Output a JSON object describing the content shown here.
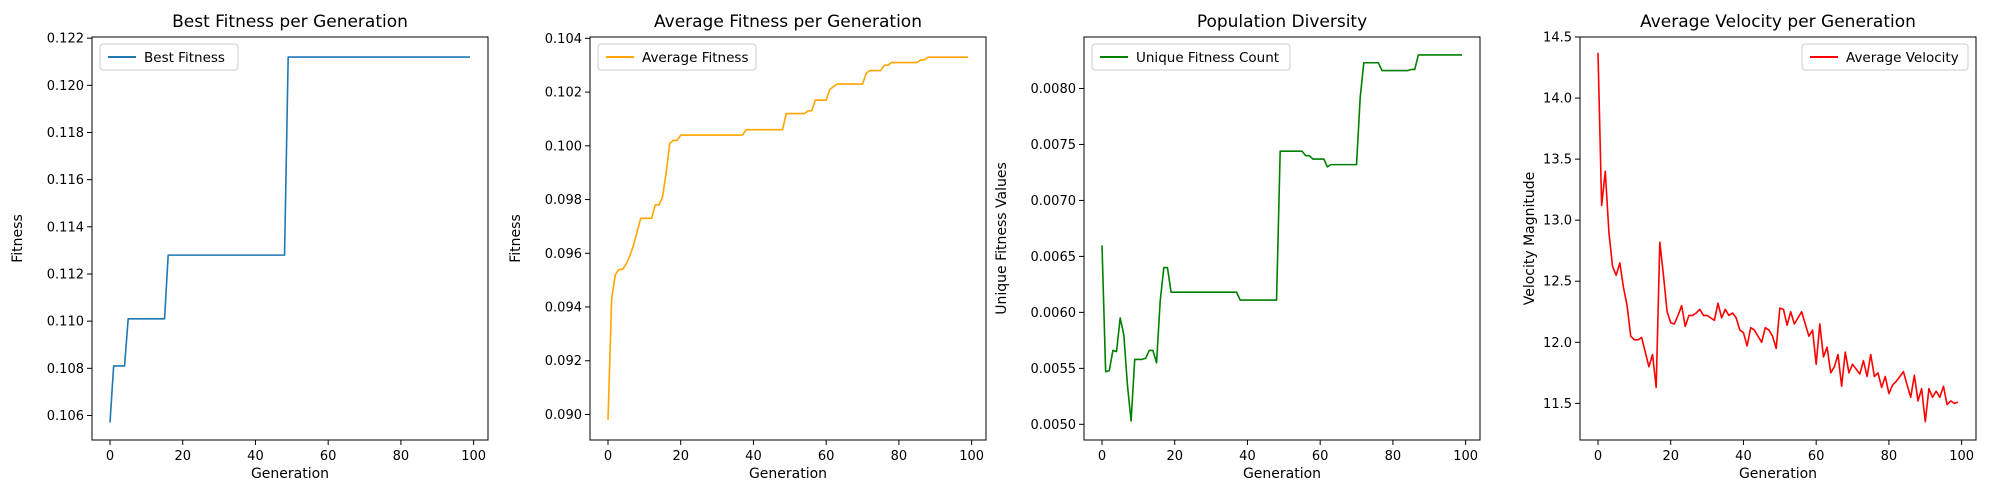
{
  "chart_data": [
    {
      "type": "line",
      "title": "Best Fitness per Generation",
      "xlabel": "Generation",
      "ylabel": "Fitness",
      "xlim": [
        -4.95,
        103.95
      ],
      "ylim": [
        0.10496,
        0.12205
      ],
      "xticks": [
        0,
        20,
        40,
        60,
        80,
        100
      ],
      "yticks": [
        0.106,
        0.108,
        0.11,
        0.112,
        0.114,
        0.116,
        0.118,
        0.12,
        0.122
      ],
      "tick_decimals": 3,
      "legend_position": "upper-left",
      "series": [
        {
          "name": "Best Fitness",
          "color": "#1f77b4",
          "points": [
            [
              0,
              0.1057
            ],
            [
              1,
              0.1081
            ],
            [
              2,
              0.1081
            ],
            [
              3,
              0.1081
            ],
            [
              4,
              0.1081
            ],
            [
              5,
              0.1101
            ],
            [
              15,
              0.1101
            ],
            [
              16,
              0.1128
            ],
            [
              48,
              0.1128
            ],
            [
              49,
              0.1212
            ],
            [
              99,
              0.1212
            ]
          ]
        }
      ]
    },
    {
      "type": "line",
      "title": "Average Fitness per Generation",
      "xlabel": "Generation",
      "ylabel": "Fitness",
      "xlim": [
        -4.95,
        103.95
      ],
      "ylim": [
        0.08905,
        0.10405
      ],
      "xticks": [
        0,
        20,
        40,
        60,
        80,
        100
      ],
      "yticks": [
        0.09,
        0.092,
        0.094,
        0.096,
        0.098,
        0.1,
        0.102,
        0.104
      ],
      "tick_decimals": 3,
      "legend_position": "upper-left",
      "series": [
        {
          "name": "Average Fitness",
          "color": "#ffa500",
          "points": [
            [
              0,
              0.0898
            ],
            [
              1,
              0.0943
            ],
            [
              2,
              0.0952
            ],
            [
              3,
              0.0954
            ],
            [
              4,
              0.0954
            ],
            [
              5,
              0.0956
            ],
            [
              6,
              0.0959
            ],
            [
              7,
              0.0963
            ],
            [
              8,
              0.0968
            ],
            [
              9,
              0.0973
            ],
            [
              10,
              0.0973
            ],
            [
              11,
              0.0973
            ],
            [
              12,
              0.0973
            ],
            [
              13,
              0.0978
            ],
            [
              14,
              0.0978
            ],
            [
              15,
              0.0981
            ],
            [
              16,
              0.099
            ],
            [
              17,
              0.1001
            ],
            [
              18,
              0.1002
            ],
            [
              19,
              0.1002
            ],
            [
              20,
              0.1004
            ],
            [
              37,
              0.1004
            ],
            [
              38,
              0.1006
            ],
            [
              48,
              0.1006
            ],
            [
              49,
              0.1012
            ],
            [
              54,
              0.1012
            ],
            [
              55,
              0.1013
            ],
            [
              56,
              0.1013
            ],
            [
              57,
              0.1017
            ],
            [
              60,
              0.1017
            ],
            [
              61,
              0.1021
            ],
            [
              62,
              0.1022
            ],
            [
              63,
              0.1023
            ],
            [
              70,
              0.1023
            ],
            [
              71,
              0.1027
            ],
            [
              72,
              0.1028
            ],
            [
              75,
              0.1028
            ],
            [
              76,
              0.103
            ],
            [
              77,
              0.103
            ],
            [
              78,
              0.1031
            ],
            [
              85,
              0.1031
            ],
            [
              86,
              0.1032
            ],
            [
              87,
              0.1032
            ],
            [
              88,
              0.1033
            ],
            [
              99,
              0.1033
            ]
          ]
        }
      ]
    },
    {
      "type": "line",
      "title": "Population Diversity",
      "xlabel": "Generation",
      "ylabel": "Unique Fitness Values",
      "xlim": [
        -4.95,
        103.95
      ],
      "ylim": [
        0.00486,
        0.00846
      ],
      "xticks": [
        0,
        20,
        40,
        60,
        80,
        100
      ],
      "yticks": [
        0.005,
        0.0055,
        0.006,
        0.0065,
        0.007,
        0.0075,
        0.008
      ],
      "tick_decimals": 4,
      "legend_position": "upper-left",
      "series": [
        {
          "name": "Unique Fitness Count",
          "color": "#008000",
          "points": [
            [
              0,
              0.0066
            ],
            [
              1,
              0.00547
            ],
            [
              2,
              0.00548
            ],
            [
              3,
              0.00566
            ],
            [
              4,
              0.00565
            ],
            [
              5,
              0.00595
            ],
            [
              6,
              0.0058
            ],
            [
              7,
              0.00535
            ],
            [
              8,
              0.00503
            ],
            [
              9,
              0.00558
            ],
            [
              10,
              0.00558
            ],
            [
              11,
              0.00558
            ],
            [
              12,
              0.00559
            ],
            [
              13,
              0.00566
            ],
            [
              14,
              0.00566
            ],
            [
              15,
              0.00555
            ],
            [
              16,
              0.0061
            ],
            [
              17,
              0.0064
            ],
            [
              18,
              0.0064
            ],
            [
              19,
              0.00618
            ],
            [
              37,
              0.00618
            ],
            [
              38,
              0.00611
            ],
            [
              48,
              0.00611
            ],
            [
              49,
              0.00744
            ],
            [
              55,
              0.00744
            ],
            [
              56,
              0.0074
            ],
            [
              57,
              0.0074
            ],
            [
              58,
              0.00737
            ],
            [
              61,
              0.00737
            ],
            [
              62,
              0.0073
            ],
            [
              63,
              0.00732
            ],
            [
              70,
              0.00732
            ],
            [
              71,
              0.00792
            ],
            [
              72,
              0.00823
            ],
            [
              76,
              0.00823
            ],
            [
              77,
              0.00816
            ],
            [
              84,
              0.00816
            ],
            [
              85,
              0.00817
            ],
            [
              86,
              0.00817
            ],
            [
              87,
              0.0083
            ],
            [
              99,
              0.0083
            ]
          ]
        }
      ]
    },
    {
      "type": "line",
      "title": "Average Velocity per Generation",
      "xlabel": "Generation",
      "ylabel": "Velocity Magnitude",
      "xlim": [
        -4.95,
        103.95
      ],
      "ylim": [
        11.2,
        14.5
      ],
      "xticks": [
        0,
        20,
        40,
        60,
        80,
        100
      ],
      "yticks": [
        11.5,
        12.0,
        12.5,
        13.0,
        13.5,
        14.0,
        14.5
      ],
      "tick_decimals": 1,
      "legend_position": "upper-right",
      "series": [
        {
          "name": "Average Velocity",
          "color": "#ff0000",
          "points": [
            [
              0,
              14.37
            ],
            [
              1,
              13.12
            ],
            [
              2,
              13.4
            ],
            [
              3,
              12.9
            ],
            [
              4,
              12.62
            ],
            [
              5,
              12.55
            ],
            [
              6,
              12.65
            ],
            [
              7,
              12.45
            ],
            [
              8,
              12.3
            ],
            [
              9,
              12.05
            ],
            [
              10,
              12.02
            ],
            [
              11,
              12.02
            ],
            [
              12,
              12.04
            ],
            [
              13,
              11.92
            ],
            [
              14,
              11.8
            ],
            [
              15,
              11.9
            ],
            [
              16,
              11.63
            ],
            [
              17,
              12.82
            ],
            [
              18,
              12.55
            ],
            [
              19,
              12.25
            ],
            [
              20,
              12.16
            ],
            [
              21,
              12.15
            ],
            [
              22,
              12.22
            ],
            [
              23,
              12.3
            ],
            [
              24,
              12.13
            ],
            [
              25,
              12.22
            ],
            [
              26,
              12.22
            ],
            [
              27,
              12.24
            ],
            [
              28,
              12.27
            ],
            [
              29,
              12.22
            ],
            [
              30,
              12.22
            ],
            [
              31,
              12.2
            ],
            [
              32,
              12.18
            ],
            [
              33,
              12.32
            ],
            [
              34,
              12.2
            ],
            [
              35,
              12.27
            ],
            [
              36,
              12.22
            ],
            [
              37,
              12.24
            ],
            [
              38,
              12.2
            ],
            [
              39,
              12.1
            ],
            [
              40,
              12.08
            ],
            [
              41,
              11.97
            ],
            [
              42,
              12.12
            ],
            [
              43,
              12.1
            ],
            [
              44,
              12.05
            ],
            [
              45,
              12.0
            ],
            [
              46,
              12.12
            ],
            [
              47,
              12.1
            ],
            [
              48,
              12.05
            ],
            [
              49,
              11.95
            ],
            [
              50,
              12.28
            ],
            [
              51,
              12.27
            ],
            [
              52,
              12.14
            ],
            [
              53,
              12.25
            ],
            [
              54,
              12.15
            ],
            [
              55,
              12.2
            ],
            [
              56,
              12.25
            ],
            [
              57,
              12.15
            ],
            [
              58,
              12.05
            ],
            [
              59,
              12.1
            ],
            [
              60,
              11.82
            ],
            [
              61,
              12.15
            ],
            [
              62,
              11.88
            ],
            [
              63,
              11.96
            ],
            [
              64,
              11.75
            ],
            [
              65,
              11.8
            ],
            [
              66,
              11.9
            ],
            [
              67,
              11.64
            ],
            [
              68,
              11.92
            ],
            [
              69,
              11.75
            ],
            [
              70,
              11.82
            ],
            [
              71,
              11.78
            ],
            [
              72,
              11.74
            ],
            [
              73,
              11.85
            ],
            [
              74,
              11.72
            ],
            [
              75,
              11.9
            ],
            [
              76,
              11.72
            ],
            [
              77,
              11.75
            ],
            [
              78,
              11.63
            ],
            [
              79,
              11.72
            ],
            [
              80,
              11.58
            ],
            [
              81,
              11.65
            ],
            [
              82,
              11.68
            ],
            [
              83,
              11.72
            ],
            [
              84,
              11.76
            ],
            [
              85,
              11.65
            ],
            [
              86,
              11.55
            ],
            [
              87,
              11.73
            ],
            [
              88,
              11.52
            ],
            [
              89,
              11.62
            ],
            [
              90,
              11.35
            ],
            [
              91,
              11.62
            ],
            [
              92,
              11.55
            ],
            [
              93,
              11.6
            ],
            [
              94,
              11.55
            ],
            [
              95,
              11.64
            ],
            [
              96,
              11.49
            ],
            [
              97,
              11.52
            ],
            [
              98,
              11.5
            ],
            [
              99,
              11.51
            ]
          ]
        }
      ]
    }
  ]
}
